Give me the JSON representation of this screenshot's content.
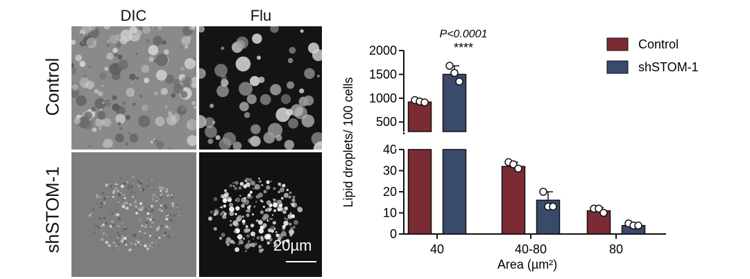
{
  "micrographs": {
    "column_labels": [
      "DIC",
      "Flu"
    ],
    "row_labels": [
      "Control",
      "shSTOM-1"
    ],
    "scale_bar_label": "20µm"
  },
  "colors": {
    "control": "#7b2b33",
    "shstom1": "#3a4a6b",
    "axis": "#111111"
  },
  "chart_data": {
    "type": "bar",
    "xlabel": "Area (µm²)",
    "ylabel": "Lipid droplets/ 100 cells",
    "categories": [
      "40",
      "40-80",
      "80"
    ],
    "series": [
      {
        "name": "Control",
        "values": [
          920,
          32,
          11
        ],
        "errors": [
          40,
          2,
          1.5
        ],
        "points": [
          [
            960,
            930,
            910
          ],
          [
            34,
            33,
            31
          ],
          [
            12,
            12,
            10
          ]
        ]
      },
      {
        "name": "shSTOM-1",
        "values": [
          1500,
          16,
          4
        ],
        "errors": [
          180,
          4,
          1
        ],
        "points": [
          [
            1680,
            1530,
            1350
          ],
          [
            20,
            13,
            13
          ],
          [
            5,
            4,
            4
          ]
        ]
      }
    ],
    "broken_axis": true,
    "lower_ylim": [
      0,
      40
    ],
    "lower_yticks": [
      "0",
      "10",
      "20",
      "30",
      "40"
    ],
    "upper_ylim": [
      300,
      2000
    ],
    "upper_yticks": [
      "500",
      "1000",
      "1500",
      "2000"
    ],
    "legend_position": "top-right",
    "annotation": {
      "category": "40",
      "pvalue_label": "P<0.0001",
      "stars": "****"
    }
  }
}
